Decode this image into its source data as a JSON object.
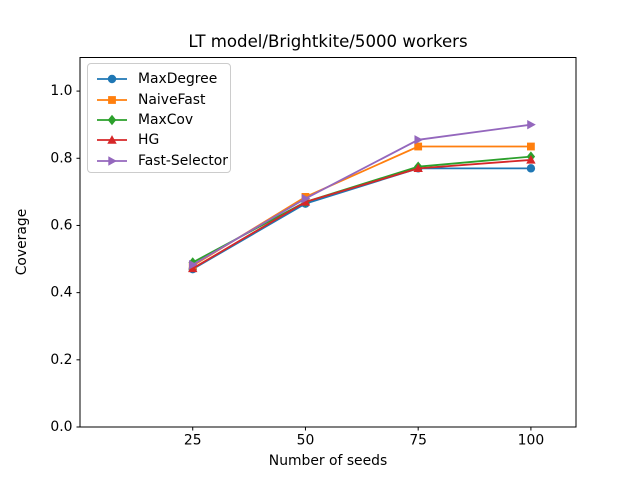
{
  "figure": {
    "background": "#ffffff",
    "axis_color": "#000000",
    "legend_border_color": "#cccccc"
  },
  "chart_data": {
    "type": "line",
    "title": "LT model/Brightkite/5000 workers",
    "xlabel": "Number of seeds",
    "ylabel": "Coverage",
    "grid": false,
    "legend_position": "upper left",
    "x": [
      25,
      50,
      75,
      100
    ],
    "xlim": [
      0,
      110
    ],
    "ylim": [
      0,
      1.1
    ],
    "xticks": [
      {
        "value": 25,
        "label": "25"
      },
      {
        "value": 50,
        "label": "50"
      },
      {
        "value": 75,
        "label": "75"
      },
      {
        "value": 100,
        "label": "100"
      }
    ],
    "yticks": [
      {
        "value": 0.0,
        "label": "0.0"
      },
      {
        "value": 0.2,
        "label": "0.2"
      },
      {
        "value": 0.4,
        "label": "0.4"
      },
      {
        "value": 0.6,
        "label": "0.6"
      },
      {
        "value": 0.8,
        "label": "0.8"
      },
      {
        "value": 1.0,
        "label": "1.0"
      }
    ],
    "series": [
      {
        "name": "maxdegree",
        "label": "MaxDegree",
        "color": "#1f77b4",
        "marker": "circle",
        "values": [
          0.47,
          0.665,
          0.77,
          0.77
        ]
      },
      {
        "name": "naivefast",
        "label": "NaiveFast",
        "color": "#ff7f0e",
        "marker": "square",
        "values": [
          0.48,
          0.685,
          0.835,
          0.835
        ]
      },
      {
        "name": "maxcov",
        "label": "MaxCov",
        "color": "#2ca02c",
        "marker": "diamond",
        "values": [
          0.49,
          0.67,
          0.775,
          0.805
        ]
      },
      {
        "name": "hg",
        "label": "HG",
        "color": "#d62728",
        "marker": "triangle-up",
        "values": [
          0.472,
          0.67,
          0.77,
          0.795
        ]
      },
      {
        "name": "fast-selector",
        "label": "Fast-Selector",
        "color": "#9467bd",
        "marker": "triangle-right",
        "values": [
          0.483,
          0.68,
          0.855,
          0.9
        ]
      }
    ]
  }
}
